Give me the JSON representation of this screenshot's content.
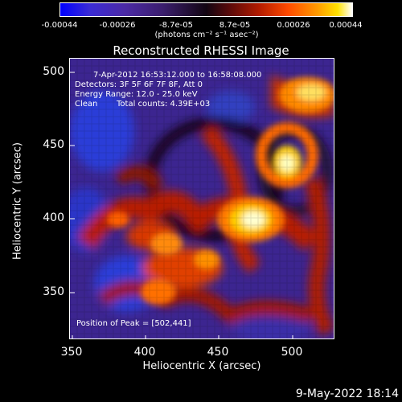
{
  "colorbar": {
    "labels": [
      "-0.00044",
      "-0.00026",
      "-8.7e-05",
      "8.7e-05",
      "0.00026",
      "0.00044"
    ],
    "unit_text": "(photons cm⁻² s⁻¹ asec⁻²)",
    "colors": [
      "#0000ff",
      "#4b2aa6",
      "#120512",
      "#b21b00",
      "#ff9a00",
      "#ffffff"
    ]
  },
  "title": "Reconstructed RHESSI Image",
  "overlay": {
    "time_range": "7-Apr-2012 16:53:12.000 to 16:58:08.000",
    "detectors": "Detectors: 3F 5F 6F 7F 8F, Att 0",
    "energy_range": "Energy Range: 12.0 - 25.0 keV",
    "algorithm": "Clean",
    "total_counts": "Total counts: 4.39E+03",
    "peak_position": "Position of Peak = [502,441]"
  },
  "axes": {
    "xlabel": "Heliocentric X (arcsec)",
    "ylabel": "Heliocentric Y (arcsec)",
    "xticks": [
      "350",
      "400",
      "450",
      "500"
    ],
    "yticks": [
      "500",
      "450",
      "400",
      "350"
    ],
    "xlim": [
      348,
      539
    ],
    "ylim": [
      316,
      507
    ]
  },
  "peak": {
    "x": 502,
    "y": 441
  },
  "footer": {
    "timestamp": "9-May-2022 18:14"
  }
}
